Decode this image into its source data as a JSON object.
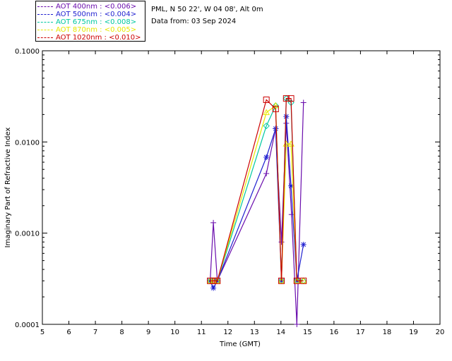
{
  "header": {
    "location": "PML, N 50 22', W 04 08', Alt 0m",
    "date": "Data from: 03 Sep 2024"
  },
  "legend": [
    {
      "label": "AOT  400nm : <0.006>",
      "color": "#6a0dad"
    },
    {
      "label": "AOT  500nm : <0.004>",
      "color": "#1f1fd0"
    },
    {
      "label": "AOT  675nm : <0.008>",
      "color": "#00c8a0"
    },
    {
      "label": "AOT  870nm : <0.005>",
      "color": "#e8e800"
    },
    {
      "label": "AOT 1020nm : <0.010>",
      "color": "#cc0000"
    }
  ],
  "chart_data": {
    "type": "line",
    "xlabel": "Time (GMT)",
    "ylabel": "Imaginary Part of Refractive Index",
    "xlim": [
      5,
      20
    ],
    "ylim": [
      0.0001,
      0.1
    ],
    "yscale": "log",
    "xticks": [
      "5",
      "6",
      "7",
      "8",
      "9",
      "10",
      "11",
      "12",
      "13",
      "14",
      "15",
      "16",
      "17",
      "18",
      "19",
      "20"
    ],
    "yticks": [
      {
        "value": 0.0001,
        "label": "0.0001"
      },
      {
        "value": 0.001,
        "label": "0.0010"
      },
      {
        "value": 0.01,
        "label": "0.0100"
      },
      {
        "value": 0.1,
        "label": "0.1000"
      }
    ],
    "series": [
      {
        "name": "AOT  400nm",
        "color": "#6a0dad",
        "marker": "plus",
        "points": [
          [
            11.33,
            0.0003
          ],
          [
            11.45,
            0.0013
          ],
          [
            11.6,
            0.0003
          ],
          [
            13.45,
            0.0045
          ],
          [
            13.8,
            0.014
          ],
          [
            14.02,
            0.0008
          ],
          [
            14.2,
            0.016
          ],
          [
            14.4,
            0.0016
          ],
          [
            14.6,
            0.0001
          ],
          [
            14.85,
            0.027
          ]
        ]
      },
      {
        "name": "AOT  500nm",
        "color": "#1f1fd0",
        "marker": "star",
        "points": [
          [
            11.33,
            0.0003
          ],
          [
            11.45,
            0.00025
          ],
          [
            11.6,
            0.0003
          ],
          [
            13.45,
            0.0068
          ],
          [
            13.8,
            0.014
          ],
          [
            14.02,
            0.0003
          ],
          [
            14.2,
            0.019
          ],
          [
            14.38,
            0.0033
          ],
          [
            14.6,
            0.0003
          ],
          [
            14.85,
            0.00075
          ]
        ]
      },
      {
        "name": "AOT  675nm",
        "color": "#00c8a0",
        "marker": "diamond",
        "points": [
          [
            11.33,
            0.0003
          ],
          [
            11.45,
            0.0003
          ],
          [
            11.6,
            0.0003
          ],
          [
            13.45,
            0.015
          ],
          [
            13.8,
            0.025
          ],
          [
            14.02,
            0.0003
          ],
          [
            14.2,
            0.03
          ],
          [
            14.38,
            0.027
          ],
          [
            14.6,
            0.0003
          ],
          [
            14.85,
            0.0003
          ]
        ]
      },
      {
        "name": "AOT  870nm",
        "color": "#e8e800",
        "marker": "triangle",
        "points": [
          [
            11.33,
            0.0003
          ],
          [
            11.45,
            0.0003
          ],
          [
            11.6,
            0.0003
          ],
          [
            13.45,
            0.021
          ],
          [
            13.8,
            0.025
          ],
          [
            14.02,
            0.0003
          ],
          [
            14.2,
            0.0095
          ],
          [
            14.38,
            0.0095
          ],
          [
            14.6,
            0.0003
          ],
          [
            14.85,
            0.0003
          ]
        ]
      },
      {
        "name": "AOT 1020nm",
        "color": "#cc0000",
        "marker": "square",
        "points": [
          [
            11.33,
            0.0003
          ],
          [
            11.45,
            0.0003
          ],
          [
            11.6,
            0.0003
          ],
          [
            13.45,
            0.029
          ],
          [
            13.8,
            0.023
          ],
          [
            14.02,
            0.0003
          ],
          [
            14.2,
            0.03
          ],
          [
            14.38,
            0.03
          ],
          [
            14.6,
            0.0003
          ],
          [
            14.85,
            0.0003
          ]
        ]
      }
    ]
  }
}
